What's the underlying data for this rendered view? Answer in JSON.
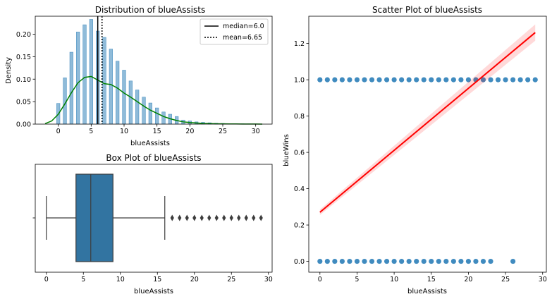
{
  "chart_data": [
    {
      "type": "histogram",
      "title": "Distribution of blueAssists",
      "xlabel": "blueAssists",
      "ylabel": "Density",
      "xlim": [
        -3.5,
        32.5
      ],
      "ylim": [
        0,
        0.24
      ],
      "xticks": [
        "0",
        "5",
        "10",
        "15",
        "20",
        "25",
        "30"
      ],
      "yticks": [
        "0.00",
        "0.05",
        "0.10",
        "0.15",
        "0.20"
      ],
      "bars": {
        "x": [
          0,
          1,
          2,
          3,
          4,
          5,
          6,
          7,
          8,
          9,
          10,
          11,
          12,
          13,
          14,
          15,
          16,
          17,
          18,
          19,
          20,
          21,
          22,
          23,
          24,
          25,
          26,
          27,
          28,
          29
        ],
        "values": [
          0.046,
          0.103,
          0.16,
          0.205,
          0.221,
          0.233,
          0.207,
          0.193,
          0.167,
          0.14,
          0.12,
          0.096,
          0.076,
          0.06,
          0.047,
          0.036,
          0.027,
          0.022,
          0.017,
          0.009,
          0.007,
          0.005,
          0.004,
          0.003,
          0.002,
          0.0015,
          0.001,
          0.001,
          0.0008,
          0.0005
        ],
        "color": "#1f77b4"
      },
      "kde": {
        "x": [
          -2,
          -1,
          0,
          1,
          2,
          3,
          4,
          5,
          6,
          7,
          8,
          9,
          10,
          11,
          12,
          13,
          14,
          15,
          16,
          17,
          18,
          19,
          20,
          21,
          22,
          23,
          24,
          25,
          26,
          27,
          28,
          29,
          30,
          31
        ],
        "y": [
          0.001,
          0.007,
          0.022,
          0.045,
          0.07,
          0.092,
          0.104,
          0.106,
          0.098,
          0.09,
          0.088,
          0.08,
          0.069,
          0.06,
          0.05,
          0.04,
          0.031,
          0.024,
          0.017,
          0.012,
          0.008,
          0.005,
          0.0035,
          0.0025,
          0.0016,
          0.0011,
          0.0008,
          0.0006,
          0.0004,
          0.0003,
          0.0002,
          0.00015,
          0.0001,
          5e-05
        ],
        "color": "#008000"
      },
      "median": {
        "value": 6.0,
        "label": "median=6.0"
      },
      "mean": {
        "value": 6.65,
        "label": "mean=6.65"
      },
      "legend": "top-right"
    },
    {
      "type": "box",
      "title": "Box Plot of blueAssists",
      "xlabel": "blueAssists",
      "xlim": [
        -1.5,
        30.5
      ],
      "xticks": [
        "0",
        "5",
        "10",
        "15",
        "20",
        "25",
        "30"
      ],
      "stats": {
        "whisker_low": 0,
        "q1": 4,
        "median": 6,
        "q3": 9,
        "whisker_high": 16
      },
      "outliers": [
        17,
        18,
        19,
        20,
        21,
        22,
        23,
        24,
        25,
        26,
        27,
        28,
        29
      ],
      "color": "#3274a1"
    },
    {
      "type": "scatter",
      "title": "Scatter Plot of blueAssists",
      "xlabel": "blueAssists",
      "ylabel": "blueWins",
      "xlim": [
        -1.5,
        30.5
      ],
      "ylim": [
        -0.06,
        1.35
      ],
      "xticks": [
        "0",
        "5",
        "10",
        "15",
        "20",
        "25",
        "30"
      ],
      "yticks": [
        "0.0",
        "0.2",
        "0.4",
        "0.6",
        "0.8",
        "1.0",
        "1.2"
      ],
      "series": [
        {
          "values_x_at_y1": [
            0,
            1,
            2,
            3,
            4,
            5,
            6,
            7,
            8,
            9,
            10,
            11,
            12,
            13,
            14,
            15,
            16,
            17,
            18,
            19,
            20,
            21,
            22,
            23,
            24,
            25,
            26,
            27,
            28,
            29
          ],
          "values_x_at_y0": [
            0,
            1,
            2,
            3,
            4,
            5,
            6,
            7,
            8,
            9,
            10,
            11,
            12,
            13,
            14,
            15,
            16,
            17,
            18,
            19,
            20,
            21,
            22,
            23,
            26
          ],
          "color": "#1f77b4"
        }
      ],
      "regression": {
        "x": [
          0,
          29
        ],
        "y": [
          0.27,
          1.26
        ],
        "ci_low": [
          0.255,
          1.215
        ],
        "ci_high": [
          0.285,
          1.305
        ],
        "color": "#ff0000"
      }
    }
  ]
}
